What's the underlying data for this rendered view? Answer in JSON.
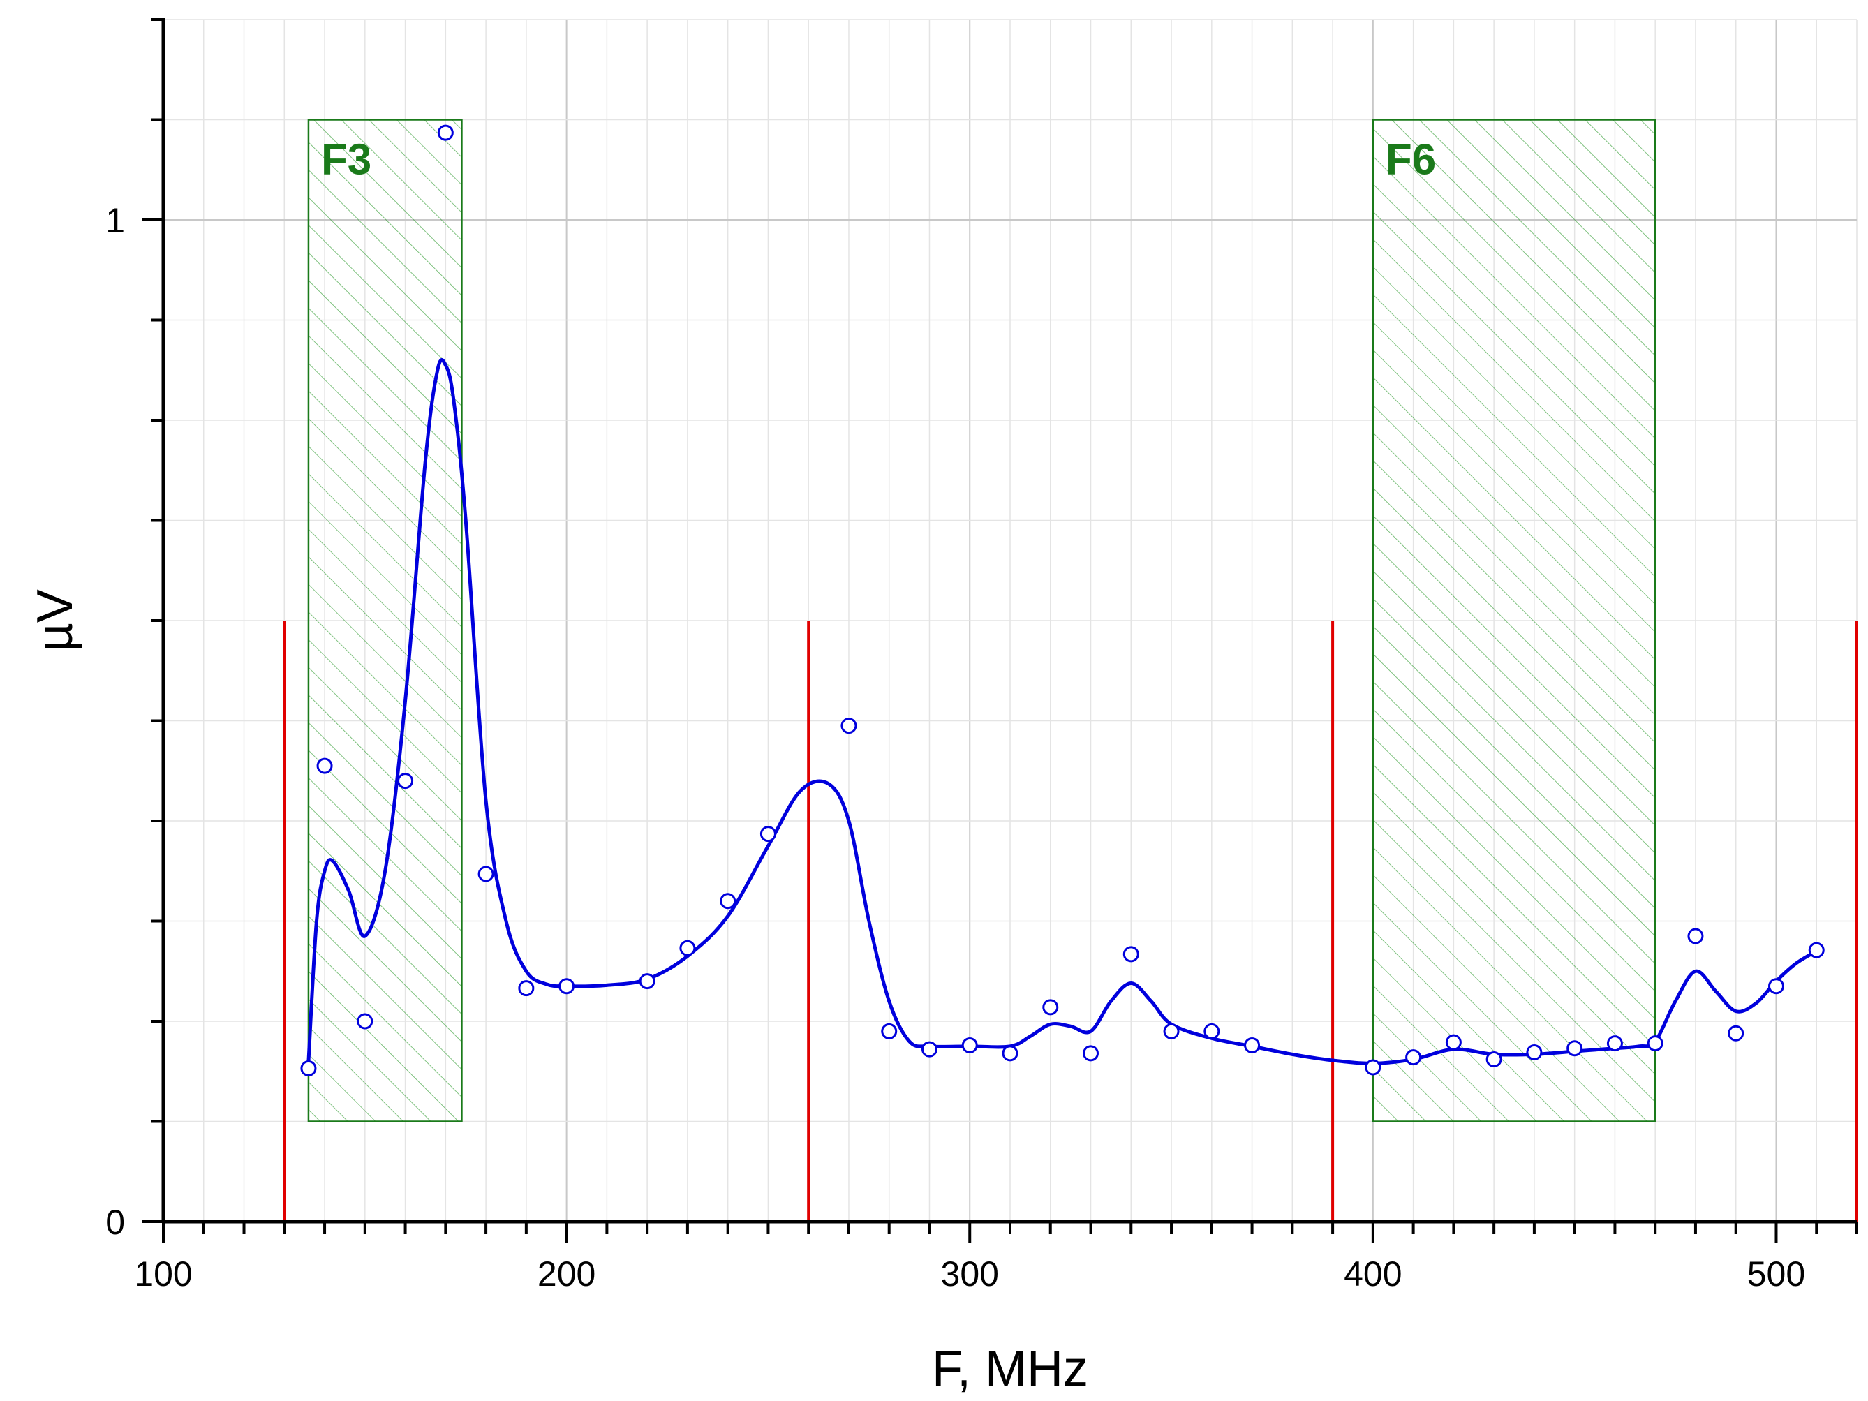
{
  "chart_data": {
    "type": "scatter",
    "title": "",
    "xlabel": "F, MHz",
    "ylabel": "µV",
    "xlim": [
      100,
      520
    ],
    "ylim": [
      0,
      1.2
    ],
    "grid": true,
    "x_ticks": [
      {
        "value": 100,
        "label": "100"
      },
      {
        "value": 200,
        "label": "200"
      },
      {
        "value": 300,
        "label": "300"
      },
      {
        "value": 400,
        "label": "400"
      },
      {
        "value": 500,
        "label": "500"
      }
    ],
    "y_ticks": [
      {
        "value": 0,
        "label": "0"
      },
      {
        "value": 1,
        "label": "1"
      }
    ],
    "series": [
      {
        "kind": "points",
        "color": "#0000dd",
        "x": [
          136,
          140,
          150,
          160,
          170,
          180,
          190,
          200,
          220,
          230,
          240,
          250,
          270,
          280,
          290,
          300,
          310,
          320,
          330,
          340,
          350,
          360,
          370,
          400,
          410,
          420,
          430,
          440,
          450,
          460,
          470,
          480,
          490,
          500,
          510
        ],
        "y": [
          0.153,
          0.455,
          0.2,
          0.44,
          1.087,
          0.347,
          0.233,
          0.235,
          0.24,
          0.273,
          0.32,
          0.387,
          0.495,
          0.19,
          0.172,
          0.176,
          0.168,
          0.214,
          0.168,
          0.267,
          0.19,
          0.19,
          0.176,
          0.154,
          0.164,
          0.179,
          0.162,
          0.169,
          0.173,
          0.178,
          0.178,
          0.285,
          0.188,
          0.235,
          0.271
        ]
      },
      {
        "kind": "smooth-line",
        "color": "#0000dd",
        "x": [
          136,
          138,
          140,
          142,
          146,
          150,
          155,
          160,
          165,
          168,
          170,
          172,
          175,
          180,
          185,
          190,
          195,
          200,
          210,
          220,
          230,
          240,
          250,
          258,
          265,
          270,
          275,
          280,
          285,
          290,
          300,
          310,
          315,
          320,
          325,
          330,
          335,
          340,
          345,
          350,
          360,
          370,
          380,
          390,
          400,
          410,
          420,
          430,
          440,
          450,
          460,
          466,
          470,
          475,
          480,
          485,
          490,
          495,
          500,
          505,
          510
        ],
        "y": [
          0.16,
          0.3,
          0.35,
          0.36,
          0.33,
          0.285,
          0.35,
          0.52,
          0.76,
          0.85,
          0.855,
          0.82,
          0.7,
          0.42,
          0.3,
          0.25,
          0.237,
          0.235,
          0.236,
          0.242,
          0.265,
          0.305,
          0.375,
          0.43,
          0.437,
          0.4,
          0.3,
          0.22,
          0.18,
          0.175,
          0.175,
          0.175,
          0.185,
          0.197,
          0.195,
          0.19,
          0.22,
          0.238,
          0.22,
          0.197,
          0.183,
          0.175,
          0.167,
          0.161,
          0.158,
          0.162,
          0.172,
          0.167,
          0.167,
          0.17,
          0.173,
          0.175,
          0.18,
          0.22,
          0.25,
          0.23,
          0.21,
          0.218,
          0.24,
          0.258,
          0.27
        ]
      }
    ],
    "bands": [
      {
        "label": "F3",
        "x_start": 136,
        "x_end": 174,
        "y_start": 0.1,
        "y_end": 1.1,
        "color": "#1a7a1a"
      },
      {
        "label": "F6",
        "x_start": 400,
        "x_end": 470,
        "y_start": 0.1,
        "y_end": 1.1,
        "color": "#1a7a1a"
      }
    ],
    "vertical_markers": {
      "x": [
        130,
        260,
        390,
        520
      ],
      "y_top": 0.6,
      "color": "#e00000"
    }
  }
}
